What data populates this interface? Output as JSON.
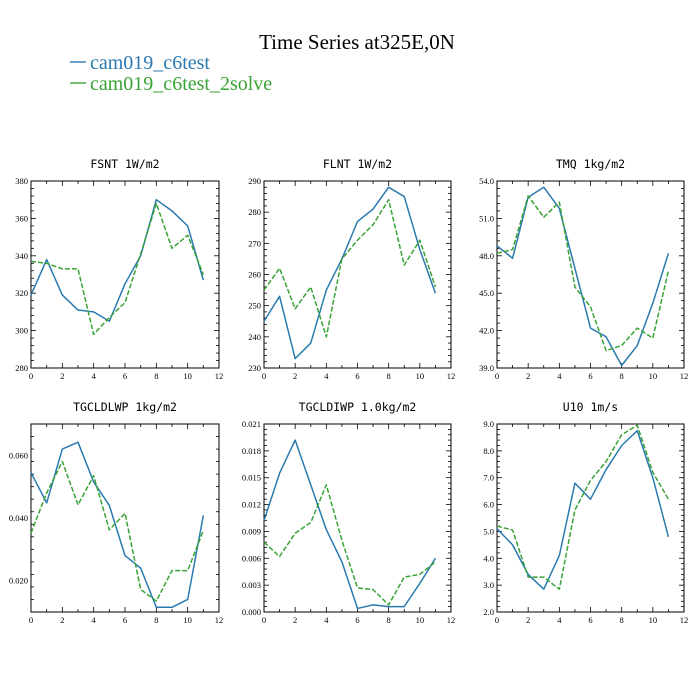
{
  "figure": {
    "title": "Time Series at325E,0N",
    "legend": [
      {
        "label": "cam019_c6test",
        "color": "#2a7ab0",
        "dash": "solid"
      },
      {
        "label": "cam019_c6test_2solve",
        "color": "#3aa335",
        "dash": "dashed"
      }
    ]
  },
  "chart_data": [
    {
      "type": "line",
      "title": "FSNT   1W/m2",
      "x": [
        0,
        1,
        2,
        3,
        4,
        5,
        6,
        7,
        8,
        9,
        10,
        11
      ],
      "xlim": [
        0,
        12
      ],
      "xticks": [
        0,
        2,
        4,
        6,
        8,
        10,
        12
      ],
      "ylim": [
        280,
        380
      ],
      "yticks": [
        280,
        300,
        320,
        340,
        360,
        380
      ],
      "yticklabels": [
        "280",
        "300",
        "320",
        "340",
        "360",
        "380"
      ],
      "series": [
        {
          "name": "cam019_c6test",
          "values": [
            319,
            338,
            319,
            311,
            310,
            305,
            325,
            340,
            370,
            364,
            356,
            327
          ]
        },
        {
          "name": "cam019_c6test_2solve",
          "values": [
            337,
            336,
            333,
            333,
            298,
            307,
            315,
            341,
            368,
            344,
            351,
            330
          ]
        }
      ]
    },
    {
      "type": "line",
      "title": "FLNT   1W/m2",
      "x": [
        0,
        1,
        2,
        3,
        4,
        5,
        6,
        7,
        8,
        9,
        10,
        11
      ],
      "xlim": [
        0,
        12
      ],
      "xticks": [
        0,
        2,
        4,
        6,
        8,
        10,
        12
      ],
      "ylim": [
        230,
        290
      ],
      "yticks": [
        230,
        240,
        250,
        260,
        270,
        280,
        290
      ],
      "yticklabels": [
        "230",
        "240",
        "250",
        "260",
        "270",
        "280",
        "290"
      ],
      "series": [
        {
          "name": "cam019_c6test",
          "values": [
            245,
            253,
            233,
            238,
            255,
            265,
            277,
            281,
            288,
            285,
            268,
            254
          ]
        },
        {
          "name": "cam019_c6test_2solve",
          "values": [
            255,
            262,
            249,
            256,
            240,
            265,
            271,
            276,
            284,
            263,
            271,
            256
          ]
        }
      ]
    },
    {
      "type": "line",
      "title": "TMQ   1kg/m2",
      "x": [
        0,
        1,
        2,
        3,
        4,
        5,
        6,
        7,
        8,
        9,
        10,
        11
      ],
      "xlim": [
        0,
        12
      ],
      "xticks": [
        0,
        2,
        4,
        6,
        8,
        10,
        12
      ],
      "ylim": [
        39.0,
        54.0
      ],
      "yticks": [
        39,
        42,
        45,
        48,
        51,
        54
      ],
      "yticklabels": [
        "39.0",
        "42.0",
        "45.0",
        "48.0",
        "51.0",
        "54.0"
      ],
      "series": [
        {
          "name": "cam019_c6test",
          "values": [
            48.8,
            47.8,
            52.7,
            53.5,
            51.8,
            47.0,
            42.2,
            41.5,
            39.2,
            40.8,
            44.2,
            48.2
          ]
        },
        {
          "name": "cam019_c6test_2solve",
          "values": [
            48.2,
            48.5,
            52.8,
            51.1,
            52.3,
            45.5,
            43.9,
            40.4,
            40.8,
            42.2,
            41.4,
            46.8
          ]
        }
      ]
    },
    {
      "type": "line",
      "title": "TGCLDLWP   1kg/m2",
      "x": [
        0,
        1,
        2,
        3,
        4,
        5,
        6,
        7,
        8,
        9,
        10,
        11
      ],
      "xlim": [
        0,
        12
      ],
      "xticks": [
        0,
        2,
        4,
        6,
        8,
        10,
        12
      ],
      "ylim": [
        0.01,
        0.07
      ],
      "yticks": [
        0.02,
        0.04,
        0.06
      ],
      "yticklabels": [
        "0.020",
        "0.040",
        "0.060"
      ],
      "series": [
        {
          "name": "cam019_c6test",
          "values": [
            0.0545,
            0.0448,
            0.062,
            0.0642,
            0.0515,
            0.044,
            0.028,
            0.024,
            0.0115,
            0.0115,
            0.014,
            0.0408
          ]
        },
        {
          "name": "cam019_c6test_2solve",
          "values": [
            0.0352,
            0.048,
            0.058,
            0.0442,
            0.0535,
            0.0362,
            0.0415,
            0.0172,
            0.0135,
            0.0232,
            0.0232,
            0.036
          ]
        }
      ]
    },
    {
      "type": "line",
      "title": "TGCLDIWP   1.0kg/m2",
      "x": [
        0,
        1,
        2,
        3,
        4,
        5,
        6,
        7,
        8,
        9,
        10,
        11
      ],
      "xlim": [
        0,
        12
      ],
      "xticks": [
        0,
        2,
        4,
        6,
        8,
        10,
        12
      ],
      "ylim": [
        0,
        0.021
      ],
      "yticks": [
        0,
        0.003,
        0.006,
        0.009,
        0.012,
        0.015,
        0.018,
        0.021
      ],
      "yticklabels": [
        "0.000",
        "0.003",
        "0.006",
        "0.009",
        "0.012",
        "0.015",
        "0.018",
        "0.021"
      ],
      "series": [
        {
          "name": "cam019_c6test",
          "values": [
            0.0102,
            0.0155,
            0.0192,
            0.0142,
            0.0092,
            0.0056,
            0.0004,
            0.0008,
            0.0006,
            0.0006,
            0.0032,
            0.006
          ]
        },
        {
          "name": "cam019_c6test_2solve",
          "values": [
            0.0078,
            0.0062,
            0.0088,
            0.01,
            0.0142,
            0.008,
            0.0027,
            0.0025,
            0.0008,
            0.0039,
            0.0042,
            0.0056
          ]
        }
      ]
    },
    {
      "type": "line",
      "title": "U10   1m/s",
      "x": [
        0,
        1,
        2,
        3,
        4,
        5,
        6,
        7,
        8,
        9,
        10,
        11
      ],
      "xlim": [
        0,
        12
      ],
      "xticks": [
        0,
        2,
        4,
        6,
        8,
        10,
        12
      ],
      "ylim": [
        2.0,
        9.0
      ],
      "yticks": [
        2,
        3,
        4,
        5,
        6,
        7,
        8,
        9
      ],
      "yticklabels": [
        "2.0",
        "3.0",
        "4.0",
        "5.0",
        "6.0",
        "7.0",
        "8.0",
        "9.0"
      ],
      "series": [
        {
          "name": "cam019_c6test",
          "values": [
            5.1,
            4.5,
            3.4,
            2.85,
            4.1,
            6.8,
            6.2,
            7.3,
            8.2,
            8.75,
            7.0,
            4.8
          ]
        },
        {
          "name": "cam019_c6test_2solve",
          "values": [
            5.2,
            5.05,
            3.3,
            3.3,
            2.85,
            5.8,
            6.9,
            7.6,
            8.6,
            8.95,
            7.2,
            6.2
          ]
        }
      ]
    }
  ]
}
